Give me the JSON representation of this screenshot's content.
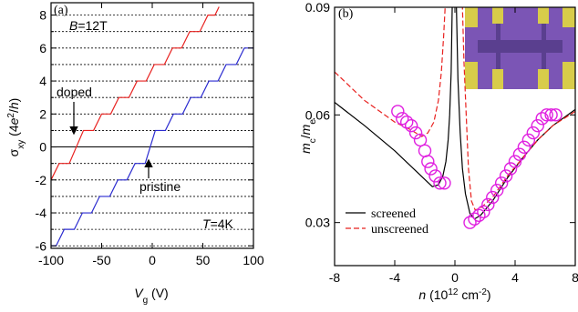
{
  "chart_data": [
    {
      "type": "line",
      "title": [
        {
          "text": "(a)"
        }
      ],
      "xlabel": [
        {
          "text": "V",
          "italic": true
        },
        {
          "text": "g",
          "sub": true
        },
        {
          "text": " (V)"
        }
      ],
      "ylabel": [
        {
          "text": "σ"
        },
        {
          "text": "xy",
          "sub": true
        },
        {
          "text": " (4"
        },
        {
          "text": "e",
          "italic": true
        },
        {
          "text": "2",
          "sup": true
        },
        {
          "text": "/"
        },
        {
          "text": "h",
          "italic": true
        },
        {
          "text": ")"
        }
      ],
      "annotations": [
        [
          {
            "text": "B",
            "italic": true
          },
          {
            "text": "=12T"
          }
        ],
        [
          {
            "text": "T",
            "italic": true
          },
          {
            "text": "=4K"
          }
        ]
      ],
      "xlim": [
        -100,
        100
      ],
      "xticks": [
        -100,
        -50,
        0,
        50,
        100
      ],
      "ylim": [
        -6.15,
        8.75
      ],
      "yticks": [
        -6,
        -4,
        -2,
        0,
        2,
        4,
        6,
        8
      ],
      "yminor": [
        -5,
        -3,
        -1,
        1,
        3,
        5,
        7
      ],
      "grid": "dotted",
      "zero_line": true,
      "series": [
        {
          "name": "doped",
          "color": "#e8211f",
          "x": [
            -100,
            -92,
            -82,
            -68,
            -58,
            -50,
            -41,
            -33,
            -23,
            -15,
            -6,
            2,
            12,
            20,
            29,
            37,
            47,
            55,
            62,
            66
          ],
          "values": [
            -2,
            -1,
            -1,
            1,
            1,
            2,
            2,
            3,
            3,
            4,
            4,
            5,
            5,
            6,
            6,
            7,
            7,
            8,
            8,
            8.5
          ]
        },
        {
          "name": "pristine",
          "color": "#2b2bd0",
          "x": [
            -100,
            -95,
            -87,
            -77,
            -69,
            -60,
            -52,
            -42,
            -34,
            -25,
            -17,
            -7,
            3,
            13,
            21,
            30,
            38,
            48,
            56,
            65,
            73,
            83,
            91,
            100
          ],
          "values": [
            -6,
            -6,
            -5,
            -5,
            -4,
            -4,
            -3,
            -3,
            -2,
            -2,
            -1,
            -1,
            1,
            1,
            2,
            2,
            3,
            3,
            4,
            4,
            5,
            5,
            6,
            6
          ]
        }
      ]
    },
    {
      "type": "line",
      "title": [
        {
          "text": "(b)"
        }
      ],
      "xlabel": [
        {
          "text": "n",
          "italic": true
        },
        {
          "text": " (10"
        },
        {
          "text": "12",
          "sup": true
        },
        {
          "text": " cm"
        },
        {
          "text": "-2",
          "sup": true
        },
        {
          "text": ")"
        }
      ],
      "ylabel": [
        {
          "text": "m",
          "italic": true
        },
        {
          "text": "c",
          "sub": true
        },
        {
          "text": "/"
        },
        {
          "text": "m",
          "italic": true
        },
        {
          "text": "e",
          "sub": true
        }
      ],
      "annotations": [],
      "xlim": [
        -8,
        8
      ],
      "xticks": [
        -8,
        -4,
        0,
        4,
        8
      ],
      "ylim": [
        0.018,
        0.09
      ],
      "yticks": [
        0.03,
        0.06,
        0.09
      ],
      "legend": "lower left",
      "series": [
        {
          "name": "screened",
          "color": "#000000",
          "style": "solid",
          "x": [
            -8,
            -6,
            -4,
            -3,
            -2,
            -1.5,
            -1.1,
            -0.8,
            -0.6,
            -0.45,
            -0.35,
            -0.25,
            -0.18,
            -0.12,
            null,
            0.05,
            0.1,
            0.2,
            0.35,
            0.5,
            0.7,
            1.0,
            1.3,
            1.7,
            2.5,
            3.5,
            4.5,
            5.5,
            6.5,
            8
          ],
          "values": [
            0.0635,
            0.057,
            0.05,
            0.046,
            0.042,
            0.04,
            0.0405,
            0.043,
            0.047,
            0.053,
            0.06,
            0.072,
            0.09,
            0.11,
            null,
            0.11,
            0.09,
            0.07,
            0.055,
            0.045,
            0.038,
            0.0325,
            0.031,
            0.032,
            0.036,
            0.0425,
            0.048,
            0.053,
            0.057,
            0.0615
          ]
        },
        {
          "name": "unscreened",
          "color": "#e8211f",
          "style": "dashed",
          "x": [
            -8,
            -6,
            -4,
            -3,
            -2.2,
            -1.8,
            -1.4,
            -1.1,
            -0.9,
            -0.75,
            -0.65,
            -0.55,
            null,
            0.4,
            0.5,
            0.6,
            0.75,
            0.9,
            1.1,
            1.35,
            1.7,
            2.5,
            3.5,
            4.5,
            5.5,
            6.5,
            8
          ],
          "values": [
            0.072,
            0.064,
            0.058,
            0.056,
            0.054,
            0.055,
            0.058,
            0.064,
            0.072,
            0.082,
            0.09,
            0.1,
            null,
            0.1,
            0.09,
            0.075,
            0.06,
            0.045,
            0.036,
            0.0335,
            0.034,
            0.037,
            0.043,
            0.048,
            0.053,
            0.057,
            0.061
          ]
        },
        {
          "type": "scatter",
          "color": "#e020e0",
          "x": [
            -3.8,
            -3.5,
            -3.2,
            -2.9,
            -2.6,
            -2.3,
            -2.0,
            -1.8,
            -1.6,
            -1.3,
            -1.0,
            -0.7,
            1.0,
            1.3,
            1.6,
            1.9,
            2.2,
            2.5,
            2.8,
            3.1,
            3.4,
            3.7,
            4.0,
            4.3,
            4.6,
            4.9,
            5.2,
            5.5,
            5.8,
            6.1,
            6.4,
            6.7
          ],
          "values": [
            0.061,
            0.059,
            0.058,
            0.057,
            0.055,
            0.053,
            0.05,
            0.047,
            0.045,
            0.043,
            0.041,
            0.041,
            0.03,
            0.031,
            0.032,
            0.033,
            0.035,
            0.037,
            0.039,
            0.041,
            0.043,
            0.045,
            0.047,
            0.049,
            0.051,
            0.053,
            0.055,
            0.057,
            0.059,
            0.06,
            0.06,
            0.06
          ]
        }
      ]
    }
  ]
}
